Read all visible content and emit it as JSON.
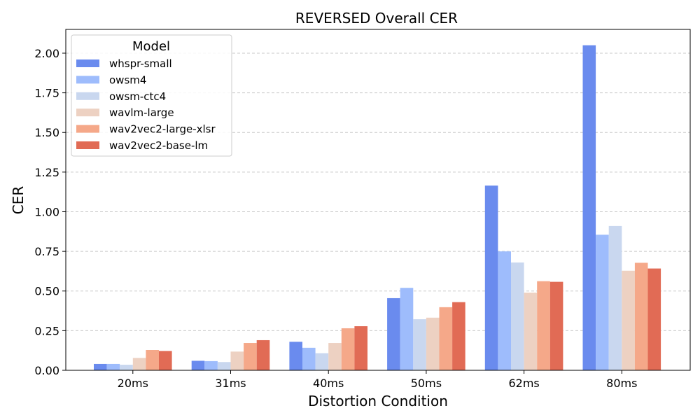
{
  "chart_data": {
    "type": "bar",
    "title": "REVERSED Overall CER",
    "xlabel": "Distortion Condition",
    "ylabel": "CER",
    "categories": [
      "20ms",
      "31ms",
      "40ms",
      "50ms",
      "62ms",
      "80ms"
    ],
    "ylim": [
      0,
      2.15
    ],
    "yticks": [
      "0.00",
      "0.25",
      "0.50",
      "0.75",
      "1.00",
      "1.25",
      "1.50",
      "1.75",
      "2.00"
    ],
    "grid": "y-dashed",
    "legend": {
      "title": "Model",
      "position": "top-left"
    },
    "series": [
      {
        "name": "whspr-small",
        "color": "#6a8bee",
        "values": [
          0.04,
          0.06,
          0.18,
          0.455,
          1.165,
          2.05
        ]
      },
      {
        "name": "owsm4",
        "color": "#9ebcfc",
        "values": [
          0.04,
          0.058,
          0.142,
          0.52,
          0.75,
          0.855
        ]
      },
      {
        "name": "owsm-ctc4",
        "color": "#c9d7ef",
        "values": [
          0.035,
          0.052,
          0.108,
          0.322,
          0.68,
          0.91
        ]
      },
      {
        "name": "wavlm-large",
        "color": "#edd1c2",
        "values": [
          0.078,
          0.118,
          0.172,
          0.332,
          0.49,
          0.628
        ]
      },
      {
        "name": "wav2vec2-large-xlsr",
        "color": "#f5a889",
        "values": [
          0.128,
          0.172,
          0.265,
          0.398,
          0.562,
          0.678
        ]
      },
      {
        "name": "wav2vec2-base-lm",
        "color": "#e16b55",
        "values": [
          0.122,
          0.19,
          0.278,
          0.43,
          0.558,
          0.642
        ]
      }
    ]
  }
}
